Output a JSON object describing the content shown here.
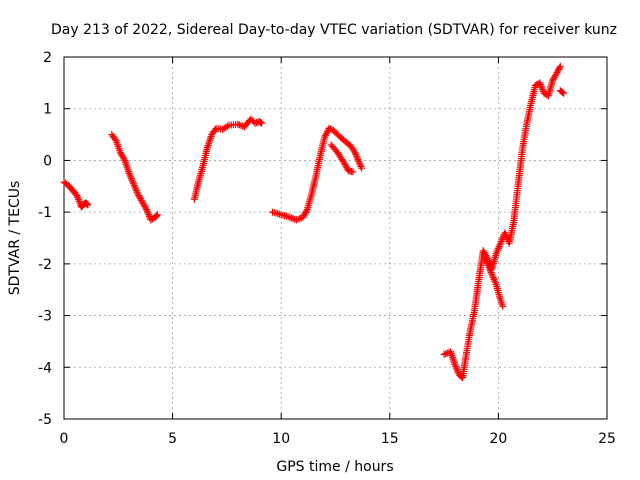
{
  "chart_data": {
    "type": "scatter",
    "title": "Day 213 of 2022, Sidereal Day-to-day VTEC variation (SDTVAR) for receiver kunz",
    "xlabel": "GPS time / hours",
    "ylabel": "SDTVAR / TECUs",
    "xlim": [
      0,
      25
    ],
    "ylim": [
      -5,
      2
    ],
    "xticks": [
      "0",
      "5",
      "10",
      "15",
      "20",
      "25"
    ],
    "yticks": [
      "-5",
      "-4",
      "-3",
      "-2",
      "-1",
      "0",
      "1",
      "2"
    ],
    "grid": true,
    "marker": "+",
    "color": "#ff0000",
    "segments": [
      [
        [
          0.0,
          -0.42
        ],
        [
          0.2,
          -0.48
        ],
        [
          0.4,
          -0.58
        ],
        [
          0.6,
          -0.68
        ],
        [
          0.8,
          -0.9
        ],
        [
          0.9,
          -0.85
        ],
        [
          1.0,
          -0.82
        ],
        [
          1.1,
          -0.86
        ]
      ],
      [
        [
          2.2,
          0.5
        ],
        [
          2.4,
          0.38
        ],
        [
          2.6,
          0.15
        ],
        [
          2.8,
          0.0
        ],
        [
          3.0,
          -0.25
        ],
        [
          3.2,
          -0.45
        ],
        [
          3.4,
          -0.65
        ],
        [
          3.6,
          -0.8
        ],
        [
          3.8,
          -0.95
        ],
        [
          4.0,
          -1.15
        ],
        [
          4.2,
          -1.1
        ],
        [
          4.3,
          -1.05
        ]
      ],
      [
        [
          6.0,
          -0.75
        ],
        [
          6.2,
          -0.4
        ],
        [
          6.4,
          -0.1
        ],
        [
          6.6,
          0.25
        ],
        [
          6.8,
          0.5
        ],
        [
          7.0,
          0.62
        ],
        [
          7.3,
          0.6
        ],
        [
          7.6,
          0.68
        ],
        [
          8.0,
          0.7
        ],
        [
          8.3,
          0.65
        ],
        [
          8.6,
          0.8
        ],
        [
          8.8,
          0.72
        ],
        [
          9.0,
          0.75
        ],
        [
          9.1,
          0.72
        ]
      ],
      [
        [
          9.6,
          -1.0
        ],
        [
          10.0,
          -1.05
        ],
        [
          10.4,
          -1.1
        ],
        [
          10.7,
          -1.15
        ],
        [
          11.0,
          -1.1
        ],
        [
          11.2,
          -0.95
        ],
        [
          11.4,
          -0.65
        ],
        [
          11.6,
          -0.3
        ],
        [
          11.8,
          0.1
        ],
        [
          12.0,
          0.45
        ],
        [
          12.2,
          0.62
        ],
        [
          12.4,
          0.58
        ],
        [
          12.6,
          0.5
        ],
        [
          12.8,
          0.42
        ],
        [
          13.0,
          0.35
        ],
        [
          13.2,
          0.28
        ],
        [
          13.4,
          0.15
        ],
        [
          13.6,
          -0.05
        ],
        [
          13.7,
          -0.15
        ]
      ],
      [
        [
          12.3,
          0.3
        ],
        [
          12.6,
          0.15
        ],
        [
          12.9,
          -0.05
        ],
        [
          13.1,
          -0.2
        ],
        [
          13.3,
          -0.22
        ]
      ],
      [
        [
          17.5,
          -3.75
        ],
        [
          17.8,
          -3.7
        ],
        [
          18.0,
          -3.95
        ],
        [
          18.2,
          -4.15
        ],
        [
          18.35,
          -4.2
        ],
        [
          18.5,
          -3.8
        ],
        [
          18.7,
          -3.3
        ],
        [
          18.9,
          -2.9
        ],
        [
          19.1,
          -2.3
        ],
        [
          19.3,
          -1.75
        ],
        [
          19.5,
          -1.9
        ],
        [
          19.7,
          -2.1
        ],
        [
          19.9,
          -1.8
        ],
        [
          20.1,
          -1.6
        ],
        [
          20.3,
          -1.4
        ],
        [
          20.5,
          -1.6
        ],
        [
          20.7,
          -1.2
        ],
        [
          20.9,
          -0.5
        ],
        [
          21.1,
          0.2
        ],
        [
          21.3,
          0.7
        ],
        [
          21.5,
          1.1
        ],
        [
          21.7,
          1.45
        ],
        [
          21.9,
          1.5
        ],
        [
          22.1,
          1.3
        ],
        [
          22.3,
          1.25
        ],
        [
          22.5,
          1.55
        ],
        [
          22.7,
          1.7
        ],
        [
          22.85,
          1.82
        ]
      ],
      [
        [
          19.3,
          -1.75
        ],
        [
          19.5,
          -2.0
        ],
        [
          19.7,
          -2.2
        ],
        [
          19.9,
          -2.4
        ],
        [
          20.1,
          -2.7
        ],
        [
          20.2,
          -2.82
        ]
      ],
      [
        [
          22.85,
          1.35
        ],
        [
          23.0,
          1.3
        ]
      ]
    ]
  }
}
